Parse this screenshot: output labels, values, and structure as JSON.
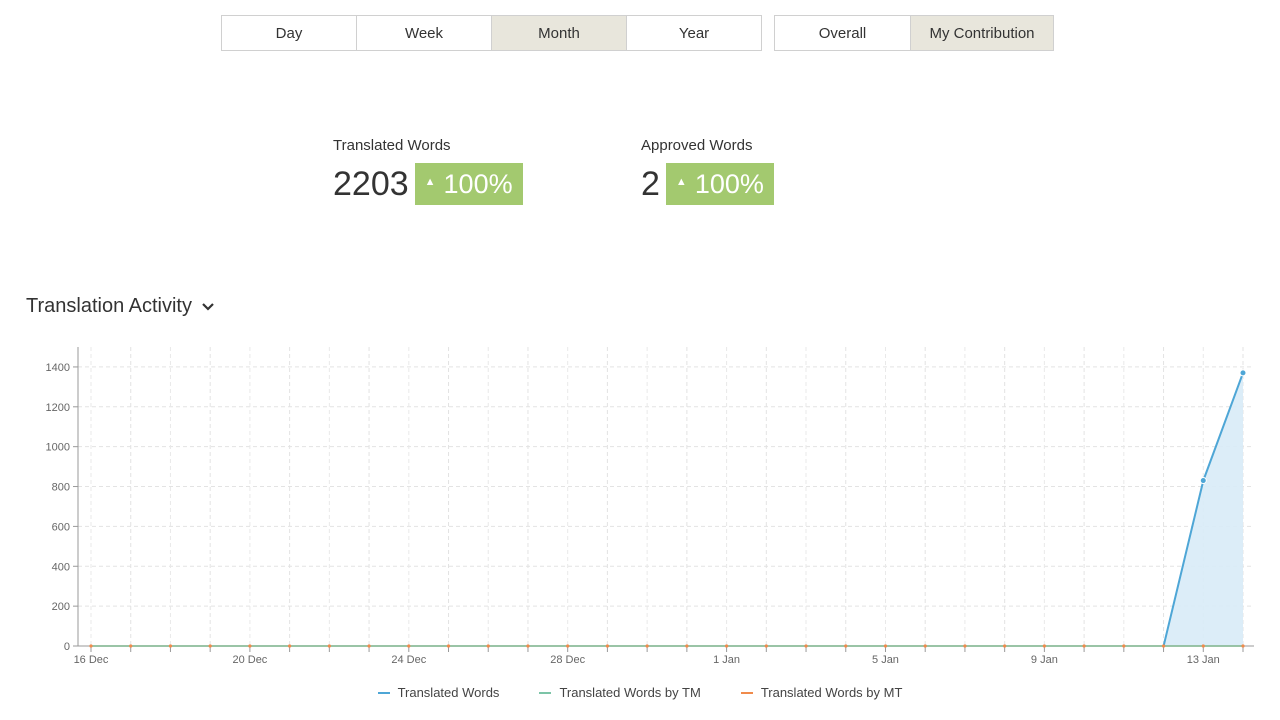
{
  "period_tabs": [
    {
      "label": "Day",
      "active": false
    },
    {
      "label": "Week",
      "active": false
    },
    {
      "label": "Month",
      "active": true
    },
    {
      "label": "Year",
      "active": false
    }
  ],
  "scope_tabs": [
    {
      "label": "Overall",
      "active": false
    },
    {
      "label": "My Contribution",
      "active": true
    }
  ],
  "stats": {
    "translated": {
      "label": "Translated Words",
      "value": "2203",
      "change": "100%"
    },
    "approved": {
      "label": "Approved Words",
      "value": "2",
      "change": "100%"
    }
  },
  "activity": {
    "title": "Translation Activity",
    "icon": "chevron-down-icon"
  },
  "colors": {
    "accent_badge": "#a3c96f",
    "series_translated": "#4ea6d6",
    "series_tm": "#7cc4a7",
    "series_mt": "#f08b4c",
    "area_fill": "#d8ebf7"
  },
  "chart_data": {
    "type": "area",
    "x": [
      "16 Dec",
      "17 Dec",
      "18 Dec",
      "19 Dec",
      "20 Dec",
      "21 Dec",
      "22 Dec",
      "23 Dec",
      "24 Dec",
      "25 Dec",
      "26 Dec",
      "27 Dec",
      "28 Dec",
      "29 Dec",
      "30 Dec",
      "31 Dec",
      "1 Jan",
      "2 Jan",
      "3 Jan",
      "4 Jan",
      "5 Jan",
      "6 Jan",
      "7 Jan",
      "8 Jan",
      "9 Jan",
      "10 Jan",
      "11 Jan",
      "12 Jan",
      "13 Jan",
      "14 Jan"
    ],
    "x_tick_labels": [
      "16 Dec",
      "20 Dec",
      "24 Dec",
      "28 Dec",
      "1 Jan",
      "5 Jan",
      "9 Jan",
      "13 Jan"
    ],
    "y_ticks": [
      0,
      200,
      400,
      600,
      800,
      1000,
      1200,
      1400
    ],
    "ylim": [
      0,
      1500
    ],
    "grid": true,
    "legend_position": "bottom",
    "series": [
      {
        "name": "Translated Words",
        "values": [
          0,
          0,
          0,
          0,
          0,
          0,
          0,
          0,
          0,
          0,
          0,
          0,
          0,
          0,
          0,
          0,
          0,
          0,
          0,
          0,
          0,
          0,
          0,
          0,
          0,
          0,
          0,
          0,
          830,
          1370
        ]
      },
      {
        "name": "Translated Words by TM",
        "values": [
          0,
          0,
          0,
          0,
          0,
          0,
          0,
          0,
          0,
          0,
          0,
          0,
          0,
          0,
          0,
          0,
          0,
          0,
          0,
          0,
          0,
          0,
          0,
          0,
          0,
          0,
          0,
          0,
          0,
          0
        ]
      },
      {
        "name": "Translated Words by MT",
        "values": [
          0,
          0,
          0,
          0,
          0,
          0,
          0,
          0,
          0,
          0,
          0,
          0,
          0,
          0,
          0,
          0,
          0,
          0,
          0,
          0,
          0,
          0,
          0,
          0,
          0,
          0,
          0,
          0,
          0,
          0
        ]
      }
    ]
  }
}
